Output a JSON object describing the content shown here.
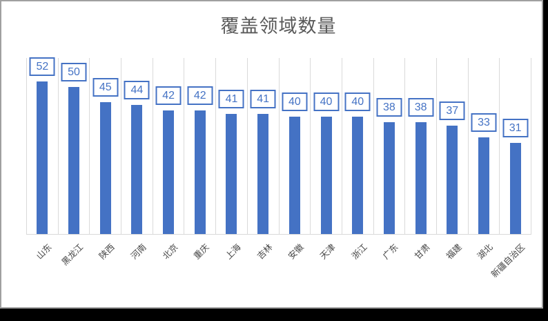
{
  "chart_data": {
    "type": "bar",
    "title": "覆盖领域数量",
    "categories": [
      "山东",
      "黑龙江",
      "陕西",
      "河南",
      "北京",
      "重庆",
      "上海",
      "吉林",
      "安徽",
      "天津",
      "浙江",
      "广东",
      "甘肃",
      "福建",
      "湖北",
      "新疆自治区"
    ],
    "values": [
      52,
      50,
      45,
      44,
      42,
      42,
      41,
      41,
      40,
      40,
      40,
      38,
      38,
      37,
      33,
      31
    ],
    "xlabel": "",
    "ylabel": "",
    "ylim": [
      0,
      60
    ],
    "grid": "vertical-category-gridlines",
    "legend": "none",
    "data_labels": "boxed-values-above-bars",
    "colors": {
      "bar": "#4472C4",
      "data_label_text": "#4472C4",
      "data_label_border": "#4472C4",
      "data_label_background": "#FFFFFF",
      "gridline": "#D9D9D9",
      "axis_line": "#D9D9D9",
      "title_text": "#595959",
      "category_text": "#474747",
      "chart_background": "#FFFFFF",
      "frame_border": "#A0A0A0",
      "page_background": "#000000"
    }
  }
}
